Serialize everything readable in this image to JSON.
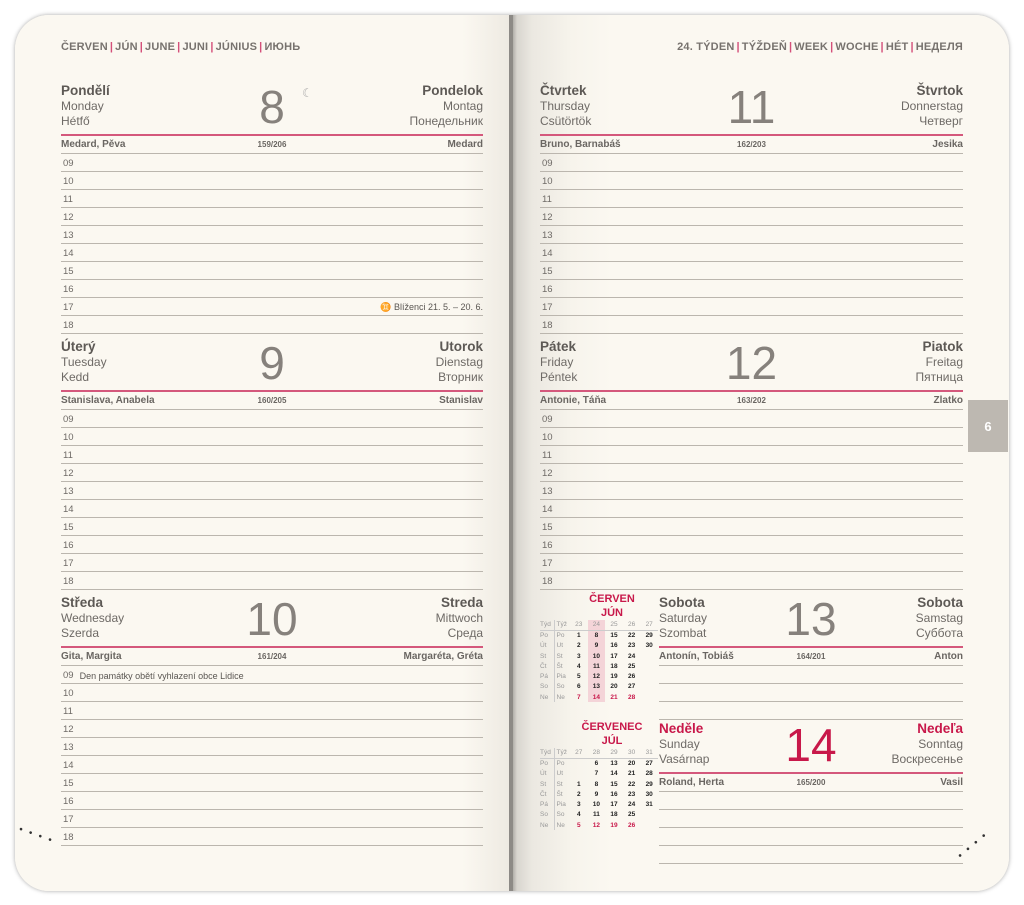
{
  "header": {
    "left": [
      "ČERVEN",
      "JÚN",
      "JUNE",
      "JUNI",
      "JÚNIUS",
      "ИЮНЬ"
    ],
    "right": [
      "24. TÝDEN",
      "TÝŽDEŇ",
      "WEEK",
      "WOCHE",
      "HÉT",
      "НЕДЕЛЯ"
    ]
  },
  "tab": "6",
  "colors": {
    "accent": "#d4587c",
    "sunday": "#c8184a"
  },
  "days": [
    {
      "cz": "Pondělí",
      "en": "Monday",
      "hu": "Hétfő",
      "sk": "Pondelok",
      "de": "Montag",
      "ru": "Понедельник",
      "num": "8",
      "moon": "☾",
      "names_cz": "Medard, Pěva",
      "doy": "159/206",
      "names_sk": "Medard",
      "hours": [
        "09",
        "10",
        "11",
        "12",
        "13",
        "14",
        "15",
        "16",
        "17",
        "18"
      ],
      "notes": {
        "17": "♊ Blíženci 21. 5. – 20. 6."
      }
    },
    {
      "cz": "Úterý",
      "en": "Tuesday",
      "hu": "Kedd",
      "sk": "Utorok",
      "de": "Dienstag",
      "ru": "Вторник",
      "num": "9",
      "names_cz": "Stanislava, Anabela",
      "doy": "160/205",
      "names_sk": "Stanislav",
      "hours": [
        "09",
        "10",
        "11",
        "12",
        "13",
        "14",
        "15",
        "16",
        "17",
        "18"
      ]
    },
    {
      "cz": "Středa",
      "en": "Wednesday",
      "hu": "Szerda",
      "sk": "Streda",
      "de": "Mittwoch",
      "ru": "Среда",
      "num": "10",
      "names_cz": "Gita, Margita",
      "doy": "161/204",
      "names_sk": "Margaréta, Gréta",
      "hours": [
        "09",
        "10",
        "11",
        "12",
        "13",
        "14",
        "15",
        "16",
        "17",
        "18"
      ],
      "notes": {
        "09": "Den památky obětí vyhlazení obce Lidice"
      },
      "notes_left": true
    },
    {
      "cz": "Čtvrtek",
      "en": "Thursday",
      "hu": "Csütörtök",
      "sk": "Štvrtok",
      "de": "Donnerstag",
      "ru": "Четверг",
      "num": "11",
      "names_cz": "Bruno, Barnabáš",
      "doy": "162/203",
      "names_sk": "Jesika",
      "hours": [
        "09",
        "10",
        "11",
        "12",
        "13",
        "14",
        "15",
        "16",
        "17",
        "18"
      ]
    },
    {
      "cz": "Pátek",
      "en": "Friday",
      "hu": "Péntek",
      "sk": "Piatok",
      "de": "Freitag",
      "ru": "Пятница",
      "num": "12",
      "names_cz": "Antonie, Táňa",
      "doy": "163/202",
      "names_sk": "Zlatko",
      "hours": [
        "09",
        "10",
        "11",
        "12",
        "13",
        "14",
        "15",
        "16",
        "17",
        "18"
      ]
    },
    {
      "cz": "Sobota",
      "en": "Saturday",
      "hu": "Szombat",
      "sk": "Sobota",
      "de": "Samstag",
      "ru": "Суббота",
      "num": "13",
      "names_cz": "Antonín, Tobiáš",
      "doy": "164/201",
      "names_sk": "Anton",
      "hours": [
        "",
        "",
        ""
      ]
    },
    {
      "cz": "Neděle",
      "en": "Sunday",
      "hu": "Vasárnap",
      "sk": "Nedeľa",
      "de": "Sonntag",
      "ru": "Воскресенье",
      "num": "14",
      "names_cz": "Roland, Herta",
      "doy": "165/200",
      "names_sk": "Vasil",
      "hours": [
        "",
        "",
        "",
        ""
      ],
      "sunday": true
    }
  ],
  "mini_calendars": [
    {
      "title_cz": "ČERVEN",
      "title_sk": "JÚN",
      "hdr": [
        "Týd",
        "Týž"
      ],
      "weeks": [
        "23",
        "24",
        "25",
        "26",
        "27"
      ],
      "highlight": 1,
      "rows": [
        [
          "Po",
          "Po",
          "1",
          "8",
          "15",
          "22",
          "29"
        ],
        [
          "Út",
          "Ut",
          "2",
          "9",
          "16",
          "23",
          "30"
        ],
        [
          "St",
          "St",
          "3",
          "10",
          "17",
          "24",
          ""
        ],
        [
          "Čt",
          "Št",
          "4",
          "11",
          "18",
          "25",
          ""
        ],
        [
          "Pá",
          "Pia",
          "5",
          "12",
          "19",
          "26",
          ""
        ],
        [
          "So",
          "So",
          "6",
          "13",
          "20",
          "27",
          ""
        ],
        [
          "Ne",
          "Ne",
          "7",
          "14",
          "21",
          "28",
          ""
        ]
      ]
    },
    {
      "title_cz": "ČERVENEC",
      "title_sk": "JÚL",
      "hdr": [
        "Týd",
        "Týž"
      ],
      "weeks": [
        "27",
        "28",
        "29",
        "30",
        "31"
      ],
      "highlight": -1,
      "rows": [
        [
          "Po",
          "Po",
          "",
          "6",
          "13",
          "20",
          "27"
        ],
        [
          "Út",
          "Ut",
          "",
          "7",
          "14",
          "21",
          "28"
        ],
        [
          "St",
          "St",
          "1",
          "8",
          "15",
          "22",
          "29"
        ],
        [
          "Čt",
          "Št",
          "2",
          "9",
          "16",
          "23",
          "30"
        ],
        [
          "Pá",
          "Pia",
          "3",
          "10",
          "17",
          "24",
          "31"
        ],
        [
          "So",
          "So",
          "4",
          "11",
          "18",
          "25",
          ""
        ],
        [
          "Ne",
          "Ne",
          "5",
          "12",
          "19",
          "26",
          ""
        ]
      ]
    }
  ]
}
